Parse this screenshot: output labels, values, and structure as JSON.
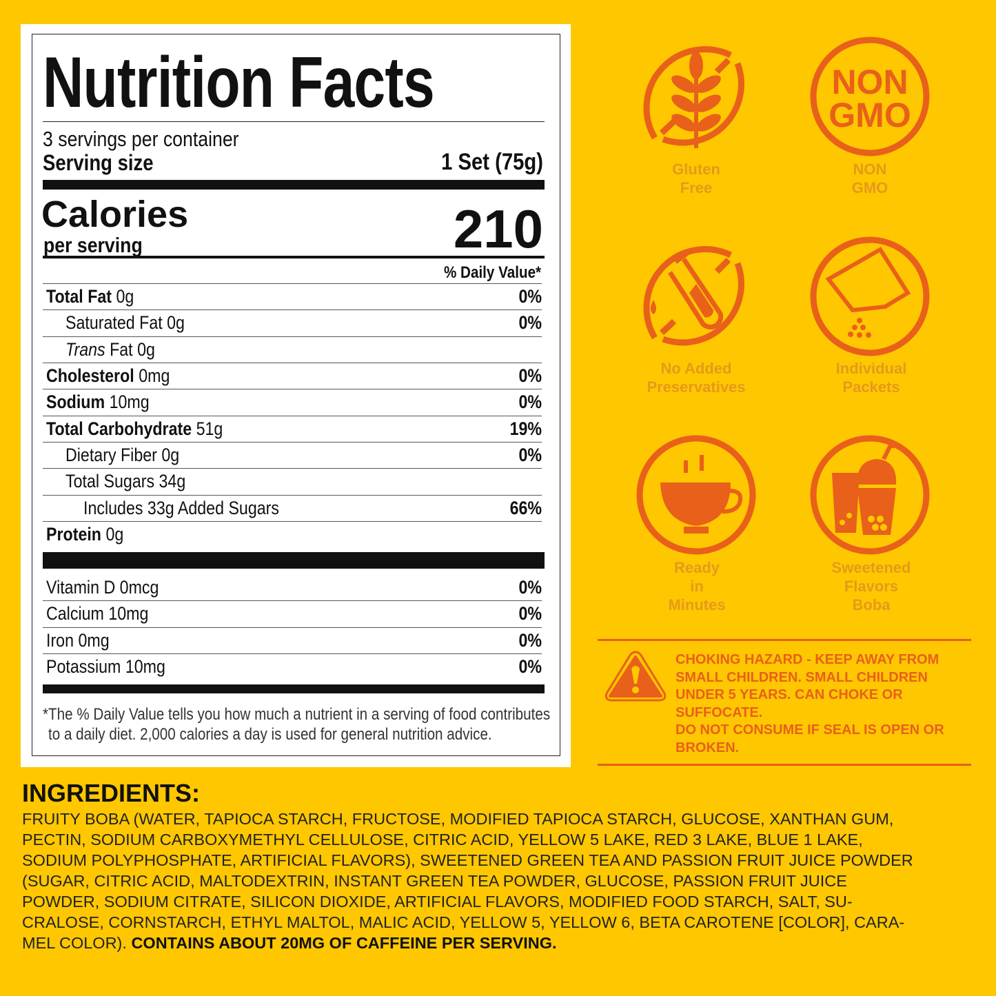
{
  "label": {
    "title": "Nutrition Facts",
    "servings_per_container": "3 servings per container",
    "serving_size_label": "Serving size",
    "serving_size_value": "1 Set (75g)",
    "calories_label": "Calories",
    "per_serving": "per serving",
    "calories_value": "210",
    "daily_value_header": "% Daily Value*",
    "nutrients": [
      {
        "name": "Total Fat",
        "amount": " 0g",
        "dv": "0%",
        "bold": true,
        "indent": 0
      },
      {
        "name": "Saturated Fat 0g",
        "amount": "",
        "dv": "0%",
        "bold": false,
        "indent": 1
      },
      {
        "name": "Trans",
        "amount": " Fat 0g",
        "dv": "",
        "bold": false,
        "indent": 1,
        "italic": true
      },
      {
        "name": "Cholesterol",
        "amount": " 0mg",
        "dv": "0%",
        "bold": true,
        "indent": 0
      },
      {
        "name": "Sodium",
        "amount": " 10mg",
        "dv": "0%",
        "bold": true,
        "indent": 0
      },
      {
        "name": "Total Carbohydrate",
        "amount": " 51g",
        "dv": "19%",
        "bold": true,
        "indent": 0
      },
      {
        "name": "Dietary Fiber  0g",
        "amount": "",
        "dv": "0%",
        "bold": false,
        "indent": 1
      },
      {
        "name": "Total Sugars  34g",
        "amount": "",
        "dv": "",
        "bold": false,
        "indent": 1
      },
      {
        "name": "Includes 33g Added Sugars",
        "amount": "",
        "dv": "66%",
        "bold": false,
        "indent": 2
      },
      {
        "name": "Protein",
        "amount": " 0g",
        "dv": "",
        "bold": true,
        "indent": 0
      }
    ],
    "vitamins": [
      {
        "name": "Vitamin D 0mcg",
        "dv": "0%"
      },
      {
        "name": "Calcium 10mg",
        "dv": "0%"
      },
      {
        "name": "Iron   0mg",
        "dv": "0%"
      },
      {
        "name": "Potassium 10mg",
        "dv": "0%"
      }
    ],
    "footnote_1": "*The % Daily Value tells you how much a nutrient in a serving of food contributes",
    "footnote_2": "to a daily diet. 2,000 calories a day is used for general nutrition advice."
  },
  "badges": [
    {
      "icon": "wheat-crossed-icon",
      "line1": "Gluten",
      "line2": "Free",
      "line3": ""
    },
    {
      "icon": "non-gmo-icon",
      "line1": "NON",
      "line2": "GMO",
      "line3": "",
      "mark1": "NON",
      "mark2": "GMO"
    },
    {
      "icon": "test-tube-crossed-icon",
      "line1": "No Added",
      "line2": "Preservatives",
      "line3": ""
    },
    {
      "icon": "packet-icon",
      "line1": "Individual",
      "line2": "Packets",
      "line3": ""
    },
    {
      "icon": "tea-cup-icon",
      "line1": "Ready",
      "line2": "in",
      "line3": "Minutes"
    },
    {
      "icon": "boba-cups-icon",
      "line1": "Sweetened",
      "line2": "Flavors",
      "line3": "Boba"
    }
  ],
  "warning": {
    "icon": "warning-triangle-icon",
    "lines": [
      "CHOKING HAZARD - KEEP AWAY FROM",
      "SMALL CHILDREN. SMALL CHILDREN",
      "UNDER 5 YEARS. CAN CHOKE OR",
      "SUFFOCATE.",
      "DO NOT CONSUME IF SEAL IS OPEN OR",
      "BROKEN."
    ]
  },
  "ingredients": {
    "heading": "INGREDIENTS:",
    "lines": [
      "FRUITY BOBA (WATER, TAPIOCA STARCH, FRUCTOSE, MODIFIED TAPIOCA STARCH, GLUCOSE, XANTHAN GUM,",
      "PECTIN, SODIUM CARBOXYMETHYL CELLULOSE, CITRIC ACID, YELLOW 5 LAKE, RED 3 LAKE, BLUE 1 LAKE,",
      "SODIUM POLYPHOSPHATE, ARTIFICIAL FLAVORS), SWEETENED GREEN TEA AND PASSION FRUIT JUICE POWDER",
      "(SUGAR, CITRIC ACID, MALTODEXTRIN, INSTANT GREEN TEA POWDER, GLUCOSE, PASSION FRUIT JUICE",
      "POWDER, SODIUM CITRATE, SILICON DIOXIDE, ARTIFICIAL FLAVORS, MODIFIED FOOD STARCH, SALT, SU-",
      "CRALOSE, CORNSTARCH, ETHYL MALTOL, MALIC ACID, YELLOW 5, YELLOW 6, BETA CAROTENE [COLOR], CARA-"
    ],
    "last_line": "MEL COLOR). ",
    "caffeine_statement": "CONTAINS ABOUT 20MG OF CAFFEINE PER SERVING."
  },
  "colors": {
    "background": "#FEC700",
    "icon_orange": "#E8601A",
    "badge_label": "#E59A1A"
  }
}
